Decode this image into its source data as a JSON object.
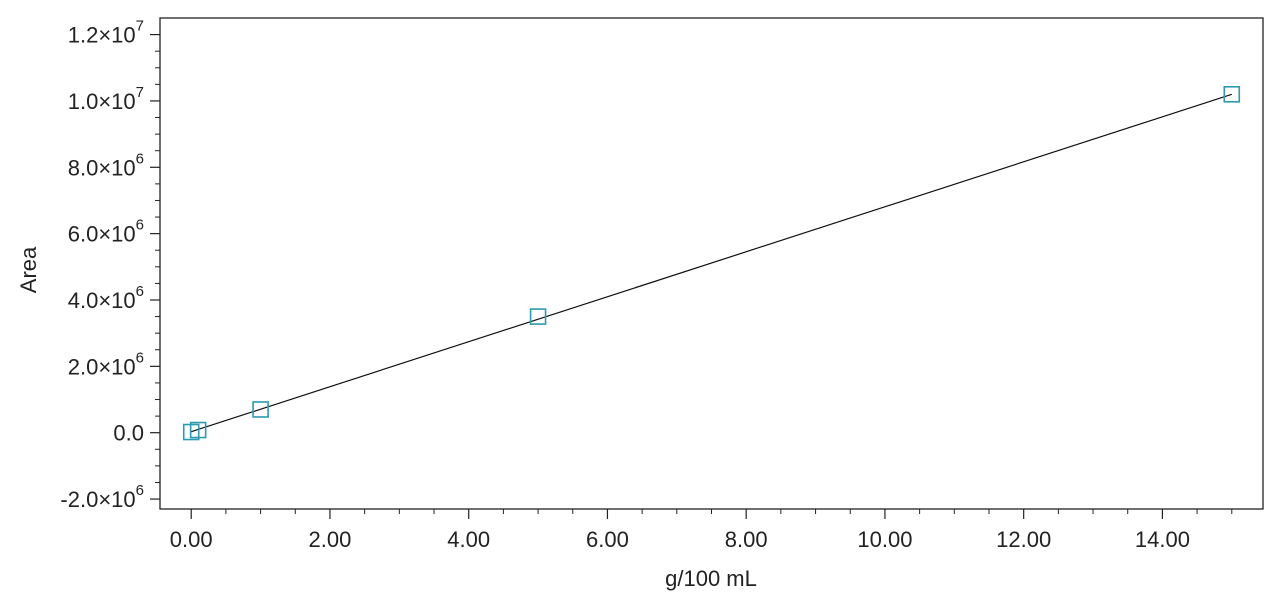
{
  "chart_data": {
    "type": "scatter",
    "xlabel": "g/100 mL",
    "ylabel": "Area",
    "xlim": [
      -0.45,
      15.45
    ],
    "ylim": [
      -2300000,
      12500000
    ],
    "grid": false,
    "legend": "none",
    "x_ticks": [
      {
        "value": 0,
        "label": "0.00"
      },
      {
        "value": 2,
        "label": "2.00"
      },
      {
        "value": 4,
        "label": "4.00"
      },
      {
        "value": 6,
        "label": "6.00"
      },
      {
        "value": 8,
        "label": "8.00"
      },
      {
        "value": 10,
        "label": "10.00"
      },
      {
        "value": 12,
        "label": "12.00"
      },
      {
        "value": 14,
        "label": "14.00"
      }
    ],
    "y_ticks": [
      {
        "value": -2000000,
        "mantissa": "-2.0",
        "times": "×10",
        "exp": "6"
      },
      {
        "value": 0,
        "mantissa": "0.0",
        "times": "",
        "exp": ""
      },
      {
        "value": 2000000,
        "mantissa": "2.0",
        "times": "×10",
        "exp": "6"
      },
      {
        "value": 4000000,
        "mantissa": "4.0",
        "times": "×10",
        "exp": "6"
      },
      {
        "value": 6000000,
        "mantissa": "6.0",
        "times": "×10",
        "exp": "6"
      },
      {
        "value": 8000000,
        "mantissa": "8.0",
        "times": "×10",
        "exp": "6"
      },
      {
        "value": 10000000,
        "mantissa": "1.0",
        "times": "×10",
        "exp": "7"
      },
      {
        "value": 12000000,
        "mantissa": "1.2",
        "times": "×10",
        "exp": "7"
      }
    ],
    "series": [
      {
        "points": [
          {
            "x": 0.0,
            "y": 20000
          },
          {
            "x": 0.1,
            "y": 80000
          },
          {
            "x": 1.0,
            "y": 700000
          },
          {
            "x": 5.0,
            "y": 3500000
          },
          {
            "x": 15.0,
            "y": 10200000
          }
        ],
        "marker": "square-open",
        "color": "#2a9bb0"
      }
    ],
    "fit_line": {
      "x": [
        0.0,
        15.0
      ],
      "y": [
        30000,
        10200000
      ],
      "color": "#111111"
    }
  }
}
